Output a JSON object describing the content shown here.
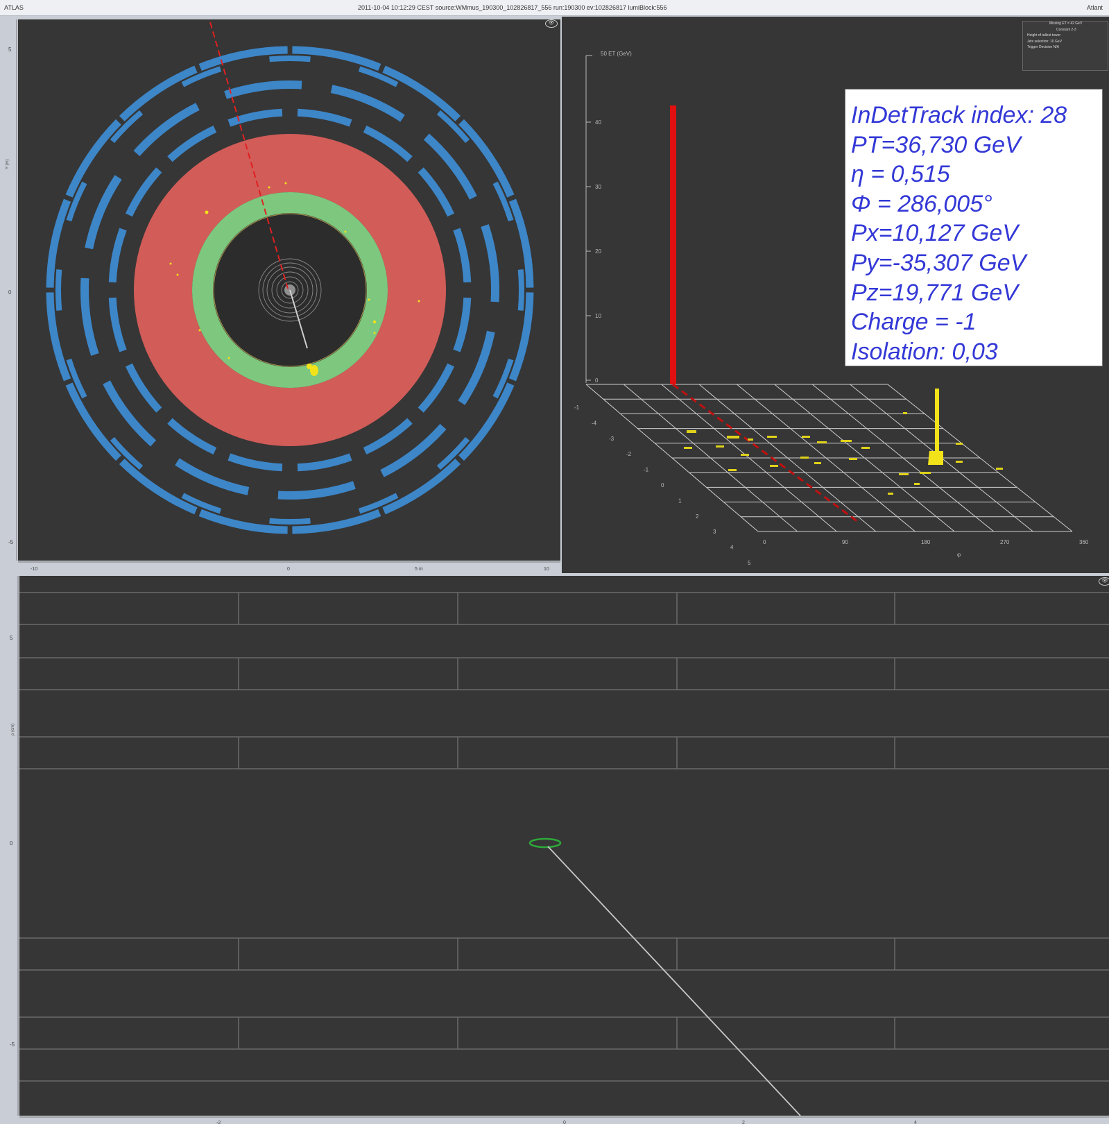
{
  "window": {
    "left_label": "ATLAS",
    "center_label": "2011-10-04 10:12:29 CEST source:WMmus_190300_102826817_556 run:190300 ev:102826817 lumiBlock:556",
    "right_label": "Atlant"
  },
  "info_box": {
    "lines": [
      "InDetTrack index: 28",
      " PT=36,730 GeV",
      " η = 0,515",
      " Φ = 286,005°",
      " Px=10,127 GeV",
      " Py=-35,307 GeV",
      " Pz=19,771 GeV",
      " Charge = -1",
      " Isolation: 0,03"
    ]
  },
  "lego_plot": {
    "z_axis_label": "50 ET (GeV)",
    "z_ticks": [
      "40",
      "30",
      "20",
      "10",
      "0"
    ],
    "eta_ticks": [
      "-1",
      "-4",
      "-3",
      "-2",
      "-1",
      "0",
      "1",
      "2",
      "3",
      "4",
      "5"
    ],
    "phi_ticks": [
      "0",
      "90",
      "180",
      "270",
      "360"
    ],
    "phi_label": "φ",
    "legend": [
      "Missing ET = 42 GeV",
      "Constant 2-3",
      "Height of tallest tower",
      "Jets selection: 10 GeV",
      "Trigger Decision N/A"
    ]
  },
  "yx_view": {
    "x_ticks": [
      "-10",
      "0",
      "5 m",
      "10"
    ],
    "y_ticks": [
      "5",
      "0",
      "-5"
    ],
    "y_unit": "Y (m)"
  },
  "rz_view": {
    "y_unit": "ρ (cm)",
    "y_ticks": [
      "5",
      "0",
      "-5"
    ],
    "x_ticks": [
      "-2",
      "0",
      "2",
      "4"
    ]
  },
  "colors": {
    "background": "#363636",
    "calorimeter_blue": "#3d86c8",
    "lar_red": "#d25c58",
    "tracker_green": "#7dc77f",
    "track_red": "#e01010",
    "hits_yellow": "#f2e21a",
    "info_text": "#3338d6"
  },
  "icons": {
    "eye_icon": "👁",
    "window_icon": "window-icon"
  }
}
